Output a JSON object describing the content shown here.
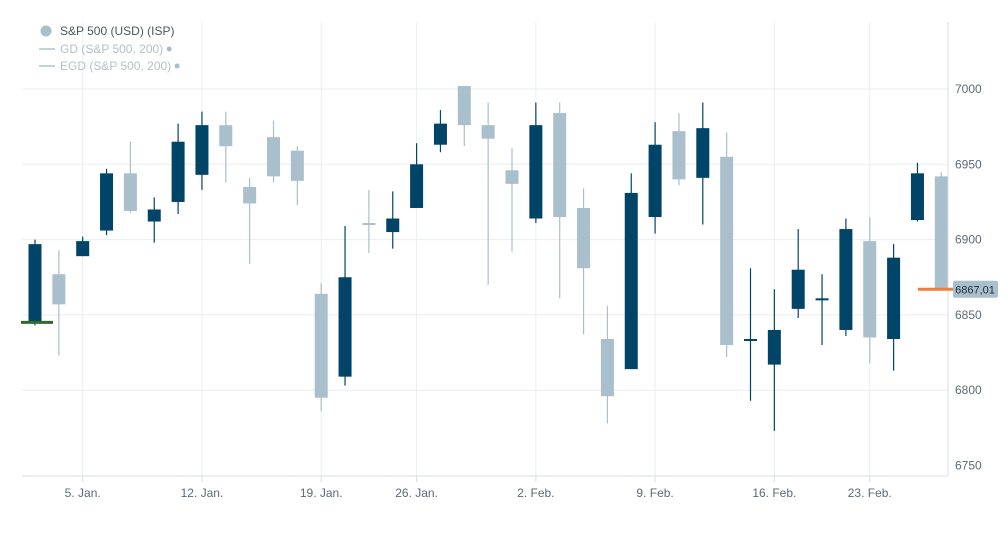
{
  "legend": {
    "items": [
      {
        "label": "S&P 500 (USD) (ISP)",
        "marker": "dot"
      },
      {
        "label": "GD (S&P 500, 200)",
        "marker": "line"
      },
      {
        "label": "EGD (S&P 500, 200)",
        "marker": "line"
      }
    ]
  },
  "colors": {
    "up": "#004468",
    "down": "#a9bfcc",
    "grid": "#e9eef2",
    "axis": "#d7dee4",
    "text": "#5b6b77",
    "first_marker": "#2f6b2f",
    "last_marker": "#ef7d3c",
    "last_tag_bg": "#a9bfcc"
  },
  "chart_data": {
    "type": "candlestick",
    "series": [
      {
        "name": "S&P 500 (USD) (ISP)"
      }
    ],
    "ylim": [
      6750,
      7030
    ],
    "yticks": [
      6750,
      6800,
      6850,
      6900,
      6950,
      7000
    ],
    "xticks": [
      {
        "label": "5. Jan.",
        "index": 2
      },
      {
        "label": "12. Jan.",
        "index": 7
      },
      {
        "label": "19. Jan.",
        "index": 12
      },
      {
        "label": "26. Jan.",
        "index": 16
      },
      {
        "label": "2. Feb.",
        "index": 21
      },
      {
        "label": "9. Feb.",
        "index": 26
      },
      {
        "label": "16. Feb.",
        "index": 31
      },
      {
        "label": "23. Feb.",
        "index": 35
      }
    ],
    "grid": true,
    "last_value_label": "6867,01",
    "candles": [
      {
        "o": 6845,
        "h": 6900,
        "l": 6843,
        "c": 6897
      },
      {
        "o": 6877,
        "h": 6893,
        "l": 6823,
        "c": 6857
      },
      {
        "o": 6889,
        "h": 6902,
        "l": 6889,
        "c": 6899
      },
      {
        "o": 6906,
        "h": 6947,
        "l": 6903,
        "c": 6944
      },
      {
        "o": 6944,
        "h": 6965,
        "l": 6918,
        "c": 6919
      },
      {
        "o": 6912,
        "h": 6928,
        "l": 6898,
        "c": 6920
      },
      {
        "o": 6925,
        "h": 6977,
        "l": 6917,
        "c": 6965
      },
      {
        "o": 6943,
        "h": 6985,
        "l": 6933,
        "c": 6976
      },
      {
        "o": 6976,
        "h": 6985,
        "l": 6938,
        "c": 6962
      },
      {
        "o": 6935,
        "h": 6941,
        "l": 6884,
        "c": 6924
      },
      {
        "o": 6968,
        "h": 6979,
        "l": 6938,
        "c": 6942
      },
      {
        "o": 6959,
        "h": 6962,
        "l": 6923,
        "c": 6939
      },
      {
        "o": 6864,
        "h": 6871,
        "l": 6786,
        "c": 6795
      },
      {
        "o": 6809,
        "h": 6909,
        "l": 6803,
        "c": 6875
      },
      {
        "o": 6911,
        "h": 6933,
        "l": 6891,
        "c": 6910
      },
      {
        "o": 6905,
        "h": 6932,
        "l": 6894,
        "c": 6914
      },
      {
        "o": 6921,
        "h": 6964,
        "l": 6921,
        "c": 6950
      },
      {
        "o": 6963,
        "h": 6986,
        "l": 6958,
        "c": 6977
      },
      {
        "o": 7002,
        "h": 7002,
        "l": 6962,
        "c": 6976
      },
      {
        "o": 6976,
        "h": 6991,
        "l": 6870,
        "c": 6967
      },
      {
        "o": 6946,
        "h": 6961,
        "l": 6892,
        "c": 6937
      },
      {
        "o": 6914,
        "h": 6991,
        "l": 6911,
        "c": 6976
      },
      {
        "o": 6984,
        "h": 6991,
        "l": 6861,
        "c": 6915
      },
      {
        "o": 6921,
        "h": 6934,
        "l": 6837,
        "c": 6881
      },
      {
        "o": 6834,
        "h": 6856,
        "l": 6778,
        "c": 6796
      },
      {
        "o": 6814,
        "h": 6944,
        "l": 6814,
        "c": 6931
      },
      {
        "o": 6915,
        "h": 6978,
        "l": 6904,
        "c": 6963
      },
      {
        "o": 6972,
        "h": 6984,
        "l": 6936,
        "c": 6940
      },
      {
        "o": 6941,
        "h": 6991,
        "l": 6910,
        "c": 6974
      },
      {
        "o": 6955,
        "h": 6971,
        "l": 6822,
        "c": 6830
      },
      {
        "o": 6833,
        "h": 6881,
        "l": 6793,
        "c": 6834
      },
      {
        "o": 6817,
        "h": 6867,
        "l": 6773,
        "c": 6840
      },
      {
        "o": 6854,
        "h": 6907,
        "l": 6848,
        "c": 6880
      },
      {
        "o": 6861,
        "h": 6877,
        "l": 6830,
        "c": 6861
      },
      {
        "o": 6840,
        "h": 6914,
        "l": 6836,
        "c": 6907
      },
      {
        "o": 6899,
        "h": 6915,
        "l": 6818,
        "c": 6835
      },
      {
        "o": 6834,
        "h": 6897,
        "l": 6813,
        "c": 6888
      },
      {
        "o": 6913,
        "h": 6951,
        "l": 6912,
        "c": 6944
      },
      {
        "o": 6942,
        "h": 6945,
        "l": 6867,
        "c": 6867
      }
    ]
  }
}
